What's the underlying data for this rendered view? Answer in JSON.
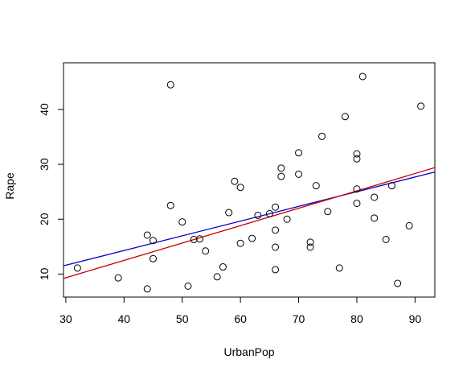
{
  "chart_data": {
    "type": "scatter",
    "title": "",
    "xlabel": "UrbanPop",
    "ylabel": "Rape",
    "xlim": [
      29.6,
      93.4
    ],
    "ylim": [
      5.8,
      48.5
    ],
    "xticks": [
      30,
      40,
      50,
      60,
      70,
      80,
      90
    ],
    "yticks": [
      10,
      20,
      30,
      40
    ],
    "grid": false,
    "points": [
      {
        "x": 32,
        "y": 11.1
      },
      {
        "x": 39,
        "y": 9.3
      },
      {
        "x": 44,
        "y": 7.3
      },
      {
        "x": 44,
        "y": 17.1
      },
      {
        "x": 45,
        "y": 16.1
      },
      {
        "x": 45,
        "y": 12.8
      },
      {
        "x": 48,
        "y": 44.5
      },
      {
        "x": 48,
        "y": 22.5
      },
      {
        "x": 50,
        "y": 19.5
      },
      {
        "x": 51,
        "y": 7.8
      },
      {
        "x": 52,
        "y": 16.3
      },
      {
        "x": 53,
        "y": 16.4
      },
      {
        "x": 54,
        "y": 14.2
      },
      {
        "x": 56,
        "y": 9.5
      },
      {
        "x": 57,
        "y": 11.3
      },
      {
        "x": 58,
        "y": 21.2
      },
      {
        "x": 59,
        "y": 26.9
      },
      {
        "x": 60,
        "y": 25.8
      },
      {
        "x": 60,
        "y": 15.6
      },
      {
        "x": 62,
        "y": 16.5
      },
      {
        "x": 63,
        "y": 20.7
      },
      {
        "x": 65,
        "y": 21.0
      },
      {
        "x": 66,
        "y": 22.2
      },
      {
        "x": 66,
        "y": 18.0
      },
      {
        "x": 66,
        "y": 14.9
      },
      {
        "x": 66,
        "y": 10.8
      },
      {
        "x": 67,
        "y": 29.3
      },
      {
        "x": 67,
        "y": 27.8
      },
      {
        "x": 68,
        "y": 20.0
      },
      {
        "x": 70,
        "y": 32.1
      },
      {
        "x": 70,
        "y": 28.2
      },
      {
        "x": 72,
        "y": 15.8
      },
      {
        "x": 72,
        "y": 14.9
      },
      {
        "x": 73,
        "y": 26.1
      },
      {
        "x": 74,
        "y": 35.1
      },
      {
        "x": 75,
        "y": 21.4
      },
      {
        "x": 77,
        "y": 11.1
      },
      {
        "x": 78,
        "y": 38.7
      },
      {
        "x": 80,
        "y": 31.9
      },
      {
        "x": 80,
        "y": 31.0
      },
      {
        "x": 80,
        "y": 25.5
      },
      {
        "x": 80,
        "y": 22.9
      },
      {
        "x": 81,
        "y": 46.0
      },
      {
        "x": 83,
        "y": 24.0
      },
      {
        "x": 83,
        "y": 20.2
      },
      {
        "x": 85,
        "y": 16.3
      },
      {
        "x": 86,
        "y": 26.1
      },
      {
        "x": 87,
        "y": 8.3
      },
      {
        "x": 89,
        "y": 18.8
      },
      {
        "x": 91,
        "y": 40.6
      }
    ],
    "lines": [
      {
        "color": "#0000cc",
        "x": [
          29.6,
          93.4
        ],
        "y": [
          11.5,
          28.6
        ]
      },
      {
        "color": "#cc0000",
        "x": [
          29.6,
          93.4
        ],
        "y": [
          9.2,
          29.4
        ]
      }
    ]
  }
}
